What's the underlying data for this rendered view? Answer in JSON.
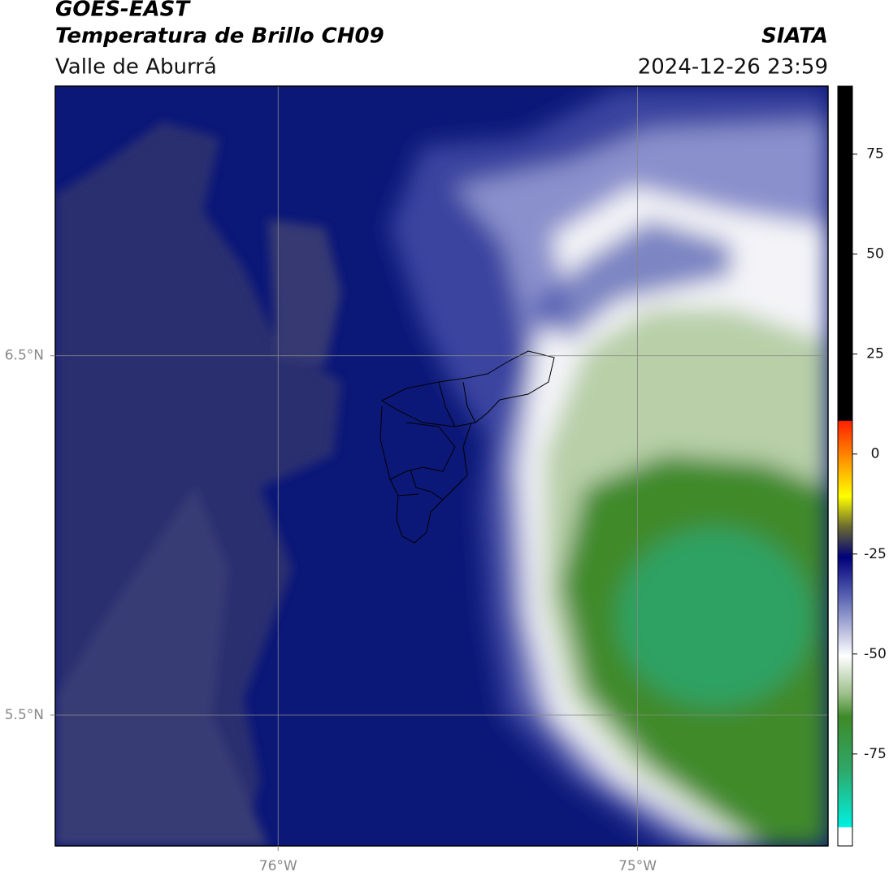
{
  "header": {
    "title": "GOES-EAST",
    "subtitle": "Temperatura de Brillo CH09",
    "region": "Valle de Aburrá",
    "source": "SIATA",
    "datetime": "2024-12-26 23:59"
  },
  "chart_data": {
    "type": "map",
    "xlim": [
      -76.62,
      -74.47
    ],
    "ylim": [
      5.136,
      7.25
    ],
    "xticks": [
      {
        "value": -76,
        "label": "76°W"
      },
      {
        "value": -75,
        "label": "75°W"
      }
    ],
    "yticks": [
      {
        "value": 6.5,
        "label": "6.5°N"
      },
      {
        "value": 5.5,
        "label": "5.5°N"
      }
    ],
    "grid": true,
    "colorbar": {
      "lim": [
        -98,
        92
      ],
      "ticks": [
        75,
        50,
        25,
        0,
        -25,
        -50,
        -75
      ]
    }
  }
}
